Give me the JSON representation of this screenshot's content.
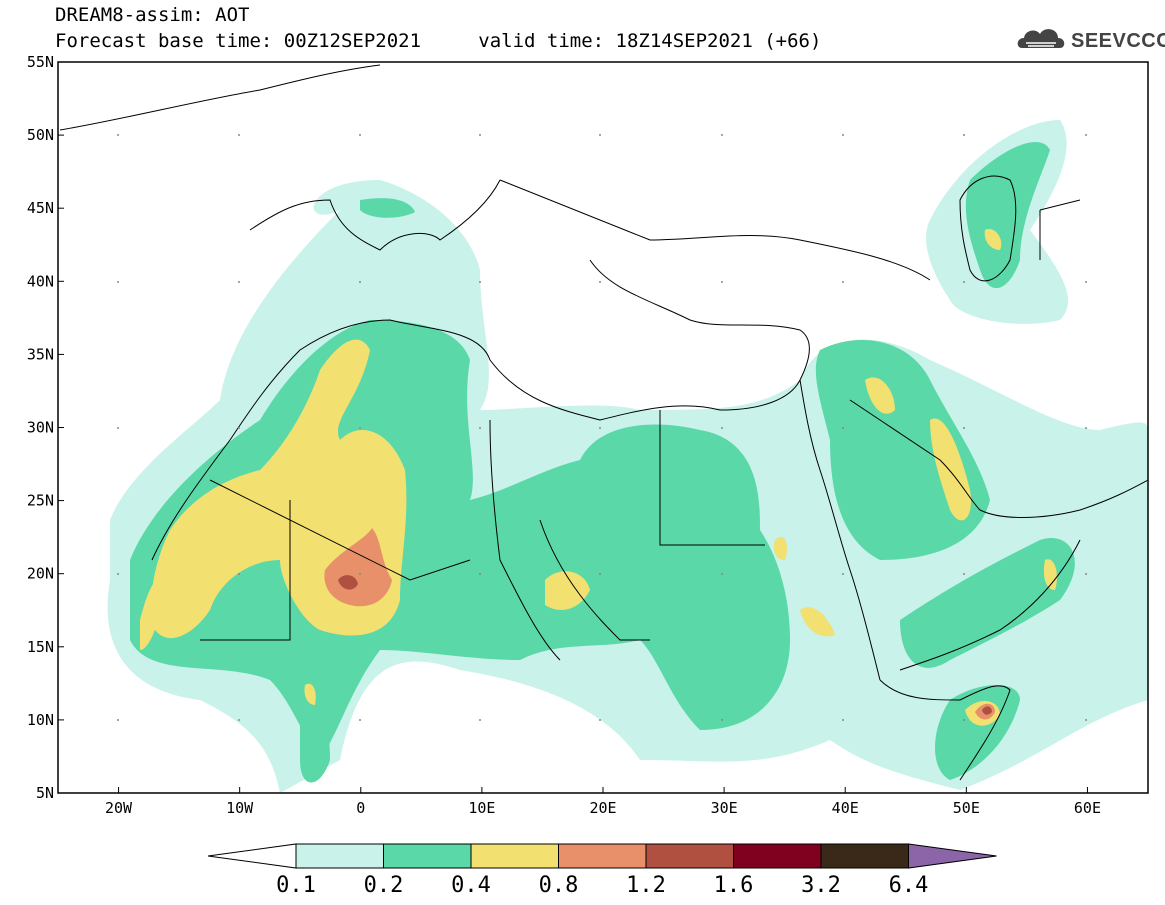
{
  "header": {
    "title": "DREAM8-assim: AOT",
    "base_time_label": "Forecast base time: 00Z12SEP2021",
    "valid_time_label": "valid time: 18Z14SEP2021 (+66)"
  },
  "logo": {
    "text": "SEEVCCC",
    "icon": "cloud-icon"
  },
  "map": {
    "lon_ticks": [
      "20W",
      "10W",
      "0",
      "10E",
      "20E",
      "30E",
      "40E",
      "50E",
      "60E"
    ],
    "lat_ticks": [
      "55N",
      "50N",
      "45N",
      "40N",
      "35N",
      "30N",
      "25N",
      "20N",
      "15N",
      "10N",
      "5N"
    ],
    "lon_range": [
      -25,
      65
    ],
    "lat_range": [
      5,
      55
    ]
  },
  "colorbar": {
    "levels": [
      "0.1",
      "0.2",
      "0.4",
      "0.8",
      "1.2",
      "1.6",
      "3.2",
      "6.4"
    ],
    "colors": [
      "#ffffff",
      "#c8f2ea",
      "#5ad8a8",
      "#f2e070",
      "#e8906a",
      "#b05040",
      "#800020",
      "#3a2818",
      "#8c64a8"
    ]
  },
  "colors": {
    "aot_01_02": "#c8f2ea",
    "aot_02_04": "#5ad8a8",
    "aot_04_08": "#f2e070",
    "aot_08_12": "#e8906a",
    "aot_12_16": "#b05040"
  }
}
